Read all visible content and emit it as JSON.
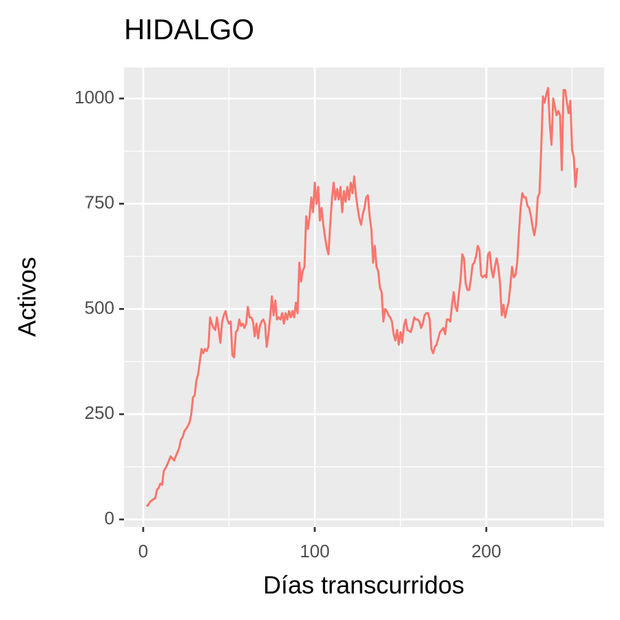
{
  "chart_data": {
    "type": "line",
    "title": "HIDALGO",
    "x_label": "Días transcurridos",
    "y_label": "Activos",
    "x": [
      2,
      3,
      4,
      5,
      6,
      7,
      8,
      9,
      10,
      11,
      12,
      13,
      14,
      15,
      16,
      17,
      18,
      19,
      20,
      21,
      22,
      23,
      24,
      25,
      26,
      27,
      28,
      29,
      30,
      31,
      32,
      33,
      34,
      35,
      36,
      37,
      38,
      39,
      40,
      41,
      42,
      43,
      44,
      45,
      46,
      47,
      48,
      49,
      50,
      51,
      52,
      53,
      54,
      55,
      56,
      57,
      58,
      59,
      60,
      61,
      62,
      63,
      64,
      65,
      66,
      67,
      68,
      69,
      70,
      71,
      72,
      73,
      74,
      75,
      76,
      77,
      78,
      79,
      80,
      81,
      82,
      83,
      84,
      85,
      86,
      87,
      88,
      89,
      90,
      91,
      92,
      93,
      94,
      95,
      96,
      97,
      98,
      99,
      100,
      101,
      102,
      103,
      104,
      105,
      106,
      107,
      108,
      109,
      110,
      111,
      112,
      113,
      114,
      115,
      116,
      117,
      118,
      119,
      120,
      121,
      122,
      123,
      124,
      125,
      126,
      127,
      128,
      129,
      130,
      131,
      132,
      133,
      134,
      135,
      136,
      137,
      138,
      139,
      140,
      141,
      142,
      143,
      144,
      145,
      146,
      147,
      148,
      149,
      150,
      151,
      152,
      153,
      154,
      155,
      156,
      157,
      158,
      159,
      160,
      161,
      162,
      163,
      164,
      165,
      166,
      167,
      168,
      169,
      170,
      171,
      172,
      173,
      174,
      175,
      176,
      177,
      178,
      179,
      180,
      181,
      182,
      183,
      184,
      185,
      186,
      187,
      188,
      189,
      190,
      191,
      192,
      193,
      194,
      195,
      196,
      197,
      198,
      199,
      200,
      201,
      202,
      203,
      204,
      205,
      206,
      207,
      208,
      209,
      210,
      211,
      212,
      213,
      214,
      215,
      216,
      217,
      218,
      219,
      220,
      221,
      222,
      223,
      224,
      225,
      226,
      227,
      228,
      229,
      230,
      231,
      232,
      233,
      234,
      235,
      236,
      237,
      238,
      239,
      240,
      241,
      242,
      243,
      244,
      245,
      246,
      247,
      248,
      249,
      250,
      251,
      252,
      253
    ],
    "series": [
      {
        "name": "Activos",
        "color": "#F8766D",
        "values": [
          31,
          35,
          42,
          45,
          48,
          50,
          70,
          75,
          85,
          82,
          115,
          122,
          130,
          140,
          150,
          145,
          140,
          150,
          160,
          170,
          190,
          195,
          210,
          215,
          222,
          230,
          250,
          290,
          295,
          330,
          345,
          375,
          405,
          395,
          405,
          400,
          410,
          480,
          465,
          455,
          450,
          480,
          450,
          420,
          470,
          485,
          495,
          475,
          465,
          470,
          390,
          385,
          445,
          450,
          475,
          460,
          465,
          455,
          465,
          505,
          480,
          480,
          470,
          435,
          465,
          430,
          460,
          470,
          475,
          465,
          410,
          440,
          480,
          530,
          485,
          520,
          475,
          480,
          475,
          490,
          465,
          490,
          475,
          495,
          480,
          495,
          480,
          515,
          490,
          610,
          565,
          590,
          600,
          720,
          690,
          720,
          765,
          730,
          800,
          750,
          790,
          710,
          740,
          700,
          670,
          645,
          630,
          700,
          760,
          800,
          760,
          785,
          760,
          790,
          730,
          780,
          755,
          790,
          760,
          800,
          775,
          815,
          770,
          740,
          715,
          700,
          725,
          740,
          765,
          770,
          720,
          690,
          610,
          650,
          600,
          590,
          550,
          540,
          470,
          500,
          495,
          485,
          480,
          470,
          440,
          425,
          450,
          415,
          445,
          420,
          460,
          475,
          450,
          448,
          445,
          460,
          480,
          475,
          475,
          470,
          455,
          465,
          485,
          490,
          490,
          475,
          405,
          395,
          410,
          415,
          430,
          445,
          450,
          455,
          440,
          475,
          475,
          470,
          510,
          540,
          505,
          495,
          535,
          570,
          630,
          620,
          560,
          545,
          545,
          570,
          605,
          610,
          625,
          650,
          640,
          580,
          575,
          580,
          575,
          630,
          635,
          595,
          575,
          600,
          620,
          600,
          560,
          485,
          510,
          480,
          500,
          515,
          555,
          600,
          575,
          580,
          610,
          680,
          740,
          775,
          765,
          765,
          745,
          740,
          720,
          695,
          675,
          700,
          765,
          775,
          880,
          1005,
          990,
          1010,
          1025,
          940,
          890,
          1000,
          980,
          960,
          970,
          960,
          830,
          1020,
          1020,
          990,
          965,
          995,
          880,
          860,
          790,
          835
        ]
      }
    ],
    "xlim": [
      -11.2,
      268.7
    ],
    "ylim": [
      -18,
      1073.6
    ],
    "xticks": [
      0,
      100,
      200
    ],
    "yticks": [
      0,
      250,
      500,
      750,
      1000
    ],
    "x_minor_ticks": [
      50,
      150,
      250
    ],
    "y_minor_ticks": [
      125,
      375,
      625,
      875
    ],
    "grid": true
  }
}
